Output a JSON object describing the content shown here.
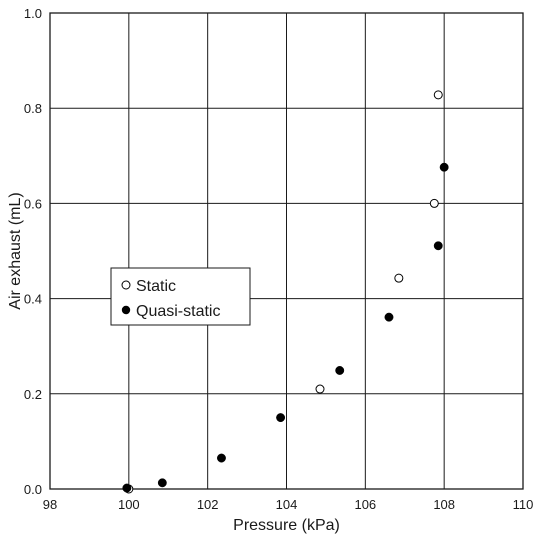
{
  "chart_data": {
    "type": "scatter",
    "xlabel": "Pressure (kPa)",
    "ylabel": "Air exhaust (mL)",
    "xlim": [
      98,
      110
    ],
    "ylim": [
      0,
      1.0
    ],
    "x_ticks": [
      "98",
      "100",
      "102",
      "104",
      "106",
      "108",
      "110"
    ],
    "y_ticks": [
      "0.0",
      "0.2",
      "0.4",
      "0.6",
      "0.8",
      "1.0"
    ],
    "grid": true,
    "legend_position": "center-left",
    "series": [
      {
        "name": "Static",
        "marker": "open-circle",
        "x": [
          100.0,
          104.85,
          106.85,
          107.75,
          107.85
        ],
        "y": [
          0.0,
          0.21,
          0.443,
          0.6,
          0.828
        ]
      },
      {
        "name": "Quasi-static",
        "marker": "filled-circle",
        "x": [
          99.95,
          100.85,
          102.35,
          103.85,
          105.35,
          106.6,
          107.85,
          108.0
        ],
        "y": [
          0.002,
          0.013,
          0.065,
          0.15,
          0.249,
          0.361,
          0.511,
          0.676
        ]
      }
    ]
  },
  "colors": {
    "marker": "#000000",
    "grid": "#1a1a1a",
    "background": "#ffffff"
  }
}
